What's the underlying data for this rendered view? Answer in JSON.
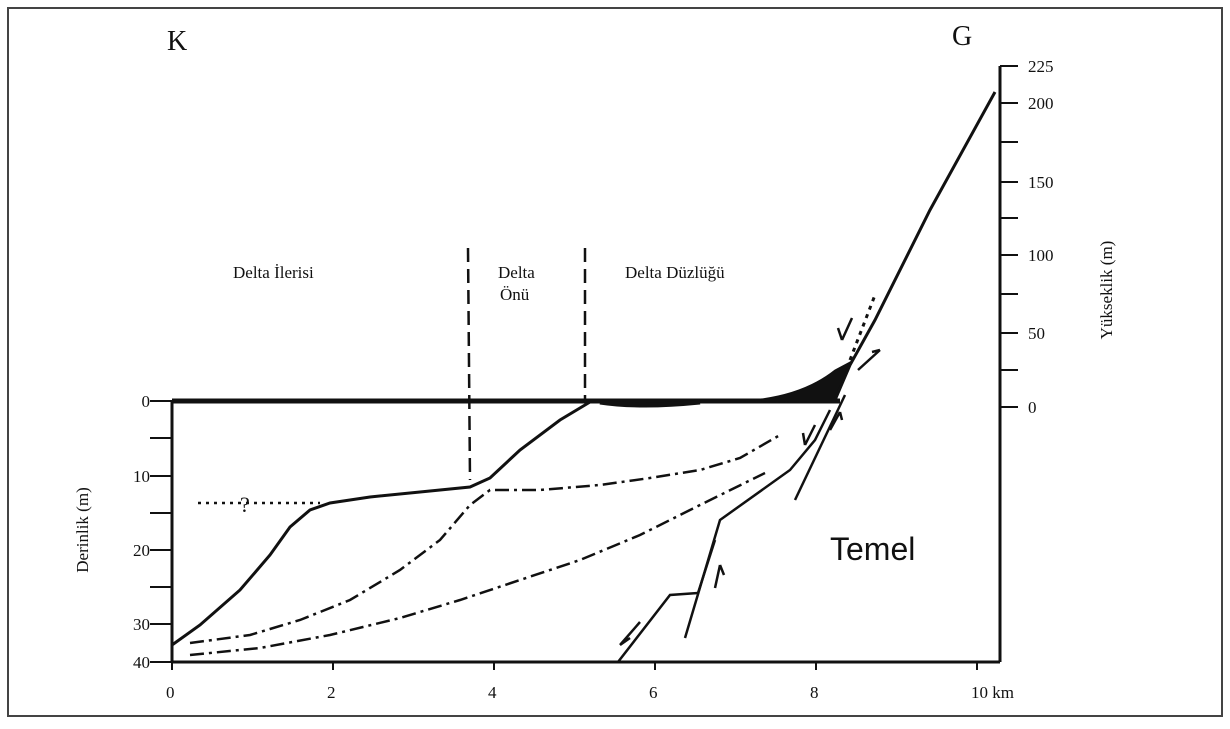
{
  "labels": {
    "left_corner": "K",
    "right_corner": "G",
    "delta_ilerisi": "Delta İlerisi",
    "delta_onu_1": "Delta",
    "delta_onu_2": "Önü",
    "delta_duzlugu": "Delta Düzlüğü",
    "temel": "Temel",
    "question": "?"
  },
  "axes": {
    "left_title": "Derinlik (m)",
    "right_title": "Yükseklik (m)",
    "bottom_ticks": [
      "0",
      "2",
      "4",
      "6",
      "8",
      "10 km"
    ],
    "left_ticks": [
      "0",
      "10",
      "20",
      "30",
      "40"
    ],
    "right_ticks": [
      "0",
      "50",
      "100",
      "150",
      "200",
      "225"
    ]
  }
}
